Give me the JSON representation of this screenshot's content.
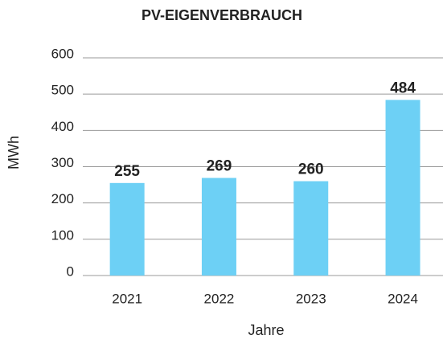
{
  "chart_data": {
    "type": "bar",
    "title": "PV-EIGENVERBRAUCH",
    "categories": [
      "2021",
      "2022",
      "2023",
      "2024"
    ],
    "values": [
      255,
      269,
      260,
      484
    ],
    "color": "#6dd0f5",
    "xlabel": "Jahre",
    "ylabel": "MWh",
    "ylim": [
      0,
      600
    ],
    "yticks": [
      0,
      100,
      200,
      300,
      400,
      500,
      600
    ],
    "grid": true
  }
}
